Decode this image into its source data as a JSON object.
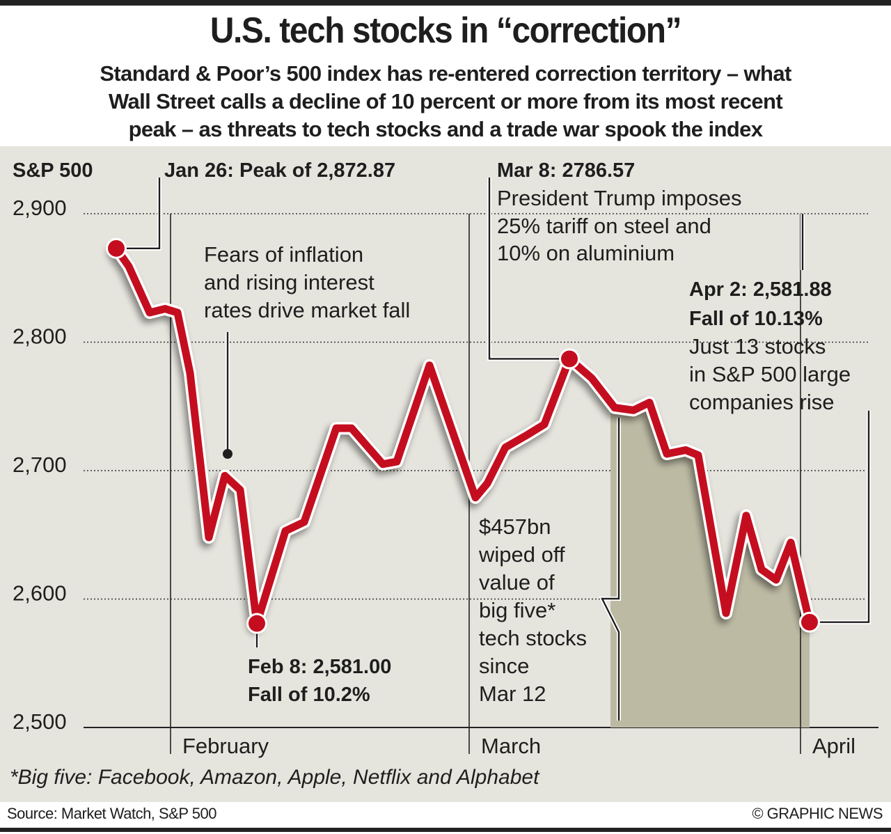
{
  "header": {
    "title": "U.S. tech stocks in “correction”",
    "subtitle_lines": [
      "Standard & Poor’s 500 index has re-entered correction territory – what",
      "Wall Street calls a decline of 10 percent or more from its most recent",
      "peak – as threats to tech stocks and a trade war spook the index"
    ]
  },
  "footer": {
    "footnote": "*Big five: Facebook, Amazon, Apple, Netflix and Alphabet",
    "source": "Source: Market Watch, S&P 500",
    "credit": "© GRAPHIC NEWS"
  },
  "colors": {
    "line": "#c40e1f",
    "panel": "#e5e4dd",
    "shade": "#bcbaa3",
    "text": "#1e1e1e"
  },
  "chart_data": {
    "type": "line",
    "title": "U.S. tech stocks in “correction”",
    "ylabel": "S&P 500",
    "xlabel": "",
    "ylim": [
      2500,
      2900
    ],
    "yticks": [
      2500,
      2600,
      2700,
      2800,
      2900
    ],
    "ytick_labels": [
      "2,500",
      "2,600",
      "2,700",
      "2,800",
      "2,900"
    ],
    "grid": "horizontal dotted",
    "month_labels": [
      {
        "label": "February",
        "index": 3.5
      },
      {
        "label": "March",
        "index": 18.5
      },
      {
        "label": "April",
        "index": 34.5
      }
    ],
    "series": [
      {
        "name": "S&P 500",
        "values": [
          2873,
          2859,
          2823,
          2826,
          2823,
          2776,
          2648,
          2696,
          2685,
          2581,
          2653,
          2660,
          2733,
          2733,
          2705,
          2707,
          2782,
          2679,
          2690,
          2718,
          2728,
          2736,
          2787,
          2772,
          2749,
          2747,
          2753,
          2713,
          2716,
          2712,
          2589,
          2665,
          2623,
          2615,
          2644,
          2582
        ],
        "x_pixels_hint_indices": "trading days from Jan 26 to Apr 2"
      }
    ],
    "shaded_range": {
      "from_index": 24,
      "to_index": 35,
      "label": "since Mar 12"
    },
    "highlighted_points": [
      {
        "index": 0,
        "label": "Jan 26: Peak of 2,872.87",
        "value": 2872.87
      },
      {
        "index": 9,
        "label": "Feb 8: 2,581.00",
        "sublabel": "Fall of 10.2%",
        "value": 2581.0
      },
      {
        "index": 22,
        "label": "Mar 8: 2786.57",
        "value": 2786.57
      },
      {
        "index": 35,
        "label": "Apr 2: 2,581.88",
        "sublabel": "Fall of 10.13%",
        "value": 2581.88
      }
    ],
    "annotations": {
      "axis_title": "S&P 500",
      "jan26": "Jan 26: Peak of 2,872.87",
      "fears": [
        "Fears of inflation",
        "and rising interest",
        "rates drive market fall"
      ],
      "mar8_title": "Mar 8: 2786.57",
      "mar8_text": [
        "President Trump imposes",
        "25% tariff on steel and",
        "10% on aluminium"
      ],
      "apr2_title": [
        "Apr 2: 2,581.88",
        "Fall of 10.13%"
      ],
      "apr2_text": [
        "Just 13 stocks",
        "in S&P 500 large",
        "companies rise"
      ],
      "feb8": [
        "Feb 8: 2,581.00",
        "Fall of 10.2%"
      ],
      "bigfive": [
        "$457bn",
        "wiped off",
        "value of",
        "big five*",
        "tech stocks",
        "since",
        "Mar 12"
      ]
    }
  }
}
